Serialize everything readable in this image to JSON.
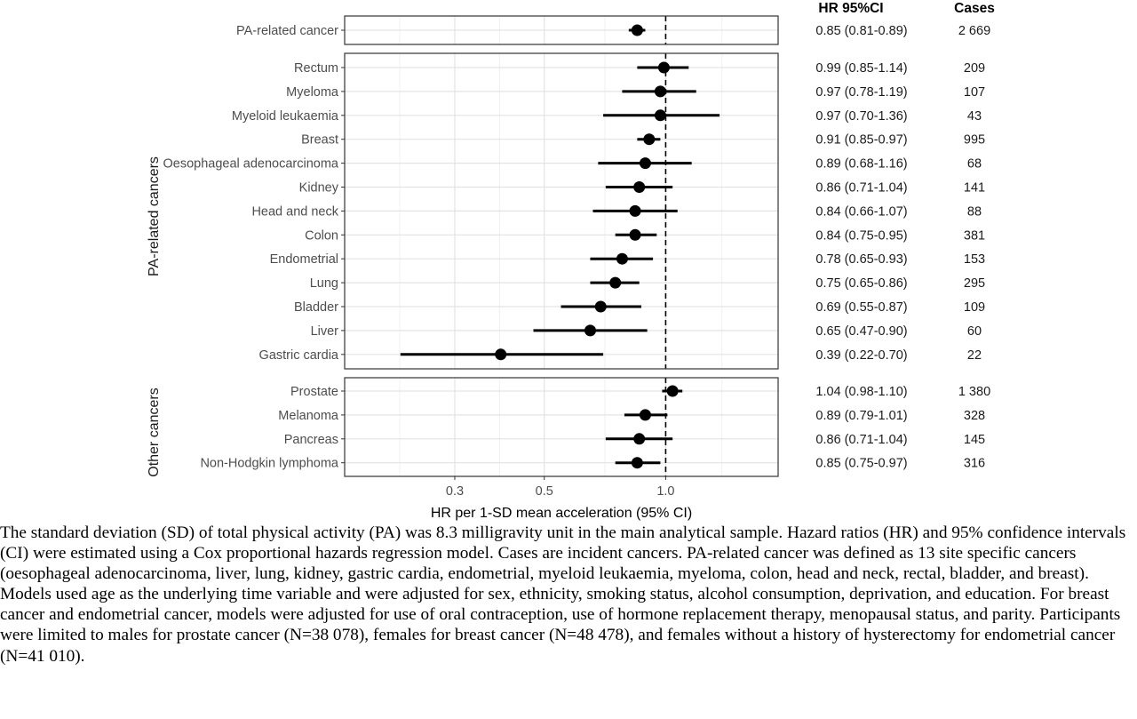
{
  "chart_data": {
    "type": "forest",
    "xlabel": "HR per 1-SD mean acceleration (95% CI)",
    "x_scale": "log",
    "x_ticks": [
      0.3,
      0.5,
      1.0
    ],
    "x_tick_labels": [
      "0.3",
      "0.5",
      "1.0"
    ],
    "xlim": [
      0.16,
      1.9
    ],
    "reference_line": 1.0,
    "grid": true,
    "columns": {
      "hr_header": "HR 95%CI",
      "cases_header": "Cases"
    },
    "panels": [
      {
        "label": "",
        "rows": [
          {
            "name": "PA-related cancer",
            "hr": 0.85,
            "lo": 0.81,
            "hi": 0.89,
            "hr_text": "0.85 (0.81-0.89)",
            "cases": "2 669"
          }
        ]
      },
      {
        "label": "PA-related cancers",
        "rows": [
          {
            "name": "Rectum",
            "hr": 0.99,
            "lo": 0.85,
            "hi": 1.14,
            "hr_text": "0.99 (0.85-1.14)",
            "cases": "209"
          },
          {
            "name": "Myeloma",
            "hr": 0.97,
            "lo": 0.78,
            "hi": 1.19,
            "hr_text": "0.97 (0.78-1.19)",
            "cases": "107"
          },
          {
            "name": "Myeloid leukaemia",
            "hr": 0.97,
            "lo": 0.7,
            "hi": 1.36,
            "hr_text": "0.97 (0.70-1.36)",
            "cases": "43"
          },
          {
            "name": "Breast",
            "hr": 0.91,
            "lo": 0.85,
            "hi": 0.97,
            "hr_text": "0.91 (0.85-0.97)",
            "cases": "995"
          },
          {
            "name": "Oesophageal adenocarcinoma",
            "hr": 0.89,
            "lo": 0.68,
            "hi": 1.16,
            "hr_text": "0.89 (0.68-1.16)",
            "cases": "68"
          },
          {
            "name": "Kidney",
            "hr": 0.86,
            "lo": 0.71,
            "hi": 1.04,
            "hr_text": "0.86 (0.71-1.04)",
            "cases": "141"
          },
          {
            "name": "Head and neck",
            "hr": 0.84,
            "lo": 0.66,
            "hi": 1.07,
            "hr_text": "0.84 (0.66-1.07)",
            "cases": "88"
          },
          {
            "name": "Colon",
            "hr": 0.84,
            "lo": 0.75,
            "hi": 0.95,
            "hr_text": "0.84 (0.75-0.95)",
            "cases": "381"
          },
          {
            "name": "Endometrial",
            "hr": 0.78,
            "lo": 0.65,
            "hi": 0.93,
            "hr_text": "0.78 (0.65-0.93)",
            "cases": "153"
          },
          {
            "name": "Lung",
            "hr": 0.75,
            "lo": 0.65,
            "hi": 0.86,
            "hr_text": "0.75 (0.65-0.86)",
            "cases": "295"
          },
          {
            "name": "Bladder",
            "hr": 0.69,
            "lo": 0.55,
            "hi": 0.87,
            "hr_text": "0.69 (0.55-0.87)",
            "cases": "109"
          },
          {
            "name": "Liver",
            "hr": 0.65,
            "lo": 0.47,
            "hi": 0.9,
            "hr_text": "0.65 (0.47-0.90)",
            "cases": "60"
          },
          {
            "name": "Gastric cardia",
            "hr": 0.39,
            "lo": 0.22,
            "hi": 0.7,
            "hr_text": "0.39 (0.22-0.70)",
            "cases": "22"
          }
        ]
      },
      {
        "label": "Other cancers",
        "rows": [
          {
            "name": "Prostate",
            "hr": 1.04,
            "lo": 0.98,
            "hi": 1.1,
            "hr_text": "1.04 (0.98-1.10)",
            "cases": "1 380"
          },
          {
            "name": "Melanoma",
            "hr": 0.89,
            "lo": 0.79,
            "hi": 1.01,
            "hr_text": "0.89 (0.79-1.01)",
            "cases": "328"
          },
          {
            "name": "Pancreas",
            "hr": 0.86,
            "lo": 0.71,
            "hi": 1.04,
            "hr_text": "0.86 (0.71-1.04)",
            "cases": "145"
          },
          {
            "name": "Non-Hodgkin lymphoma",
            "hr": 0.85,
            "lo": 0.75,
            "hi": 0.97,
            "hr_text": "0.85 (0.75-0.97)",
            "cases": "316"
          }
        ]
      }
    ]
  },
  "caption": "The standard deviation (SD) of total physical activity (PA) was 8.3 milligravity unit in the main analytical sample. Hazard ratios (HR) and 95% confidence intervals (CI) were estimated using a Cox proportional hazards regression model. Cases are incident cancers. PA-related cancer was defined as 13 site specific cancers (oesophageal adenocarcinoma, liver, lung, kidney, gastric cardia, endometrial, myeloid leukaemia, myeloma, colon, head and neck, rectal, bladder, and breast). Models used age as the underlying time variable and were adjusted for sex, ethnicity, smoking status, alcohol consumption, deprivation, and education. For breast cancer and endometrial cancer, models were adjusted for use of oral contraception, use of hormone replacement therapy, menopausal status, and parity. Participants were limited to males for prostate cancer (N=38 078), females for breast cancer (N=48 478), and females without a history of hysterectomy for endometrial cancer (N=41 010)."
}
